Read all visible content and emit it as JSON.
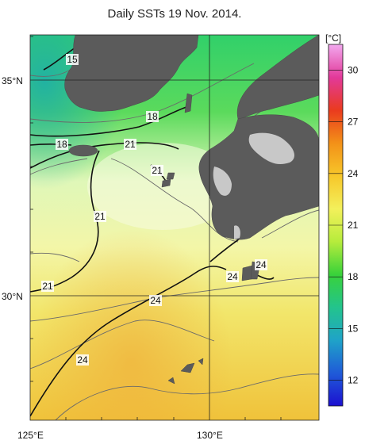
{
  "title": "Daily SSTs 19 Nov. 2014.",
  "axes": {
    "lat_labels": [
      "35°N",
      "30°N"
    ],
    "lon_labels": [
      "125°E",
      "130°E"
    ]
  },
  "colorbar": {
    "unit": "[°C]",
    "ticks": [
      "30",
      "27",
      "24",
      "21",
      "18",
      "15",
      "12"
    ],
    "stops": [
      "#1c10d0",
      "#1f5bd8",
      "#1fa3c8",
      "#23c48c",
      "#39d23a",
      "#b7ec3c",
      "#f3f05b",
      "#f7c72a",
      "#f39118",
      "#ea3b1e",
      "#e2399a",
      "#f2a8ee"
    ]
  },
  "contours": {
    "bold_labels": [
      "15",
      "18",
      "18",
      "21",
      "21",
      "21",
      "21",
      "24",
      "24",
      "24",
      "24"
    ]
  },
  "colors": {
    "land": "#5b5b5b",
    "cold_land_highlight": "#c8c8c8",
    "grid": "#222222"
  }
}
